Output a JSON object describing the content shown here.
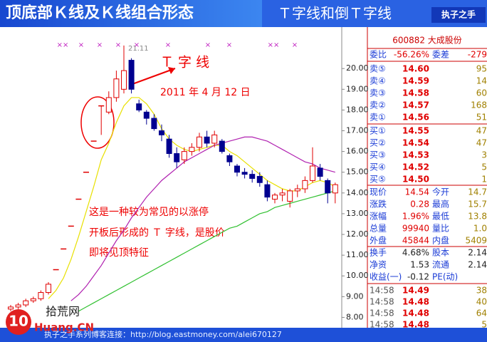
{
  "chart_data": {
    "type": "candlestick",
    "banner_title": "顶底部Ｋ线及Ｋ线组合形态",
    "title": "Ｔ字线和倒Ｔ字线",
    "banner_tag": "执子之手",
    "categories": [
      null,
      null,
      null,
      null,
      null,
      null,
      null,
      null,
      null,
      null,
      null,
      null,
      null,
      null,
      null,
      null,
      null,
      null,
      null,
      null,
      null,
      null,
      null,
      null,
      null,
      null,
      null,
      null,
      null,
      null,
      null,
      null,
      null,
      null,
      null,
      null,
      null,
      null,
      null,
      null,
      null,
      null,
      null,
      null
    ],
    "open": [
      8.4,
      8.5,
      8.6,
      8.8,
      8.9,
      9.2,
      10.3,
      11.3,
      12.4,
      13.7,
      15.0,
      16.5,
      18.2,
      17.9,
      18.6,
      19.0,
      20.4,
      18.3,
      17.9,
      17.6,
      17.0,
      16.6,
      15.9,
      15.6,
      16.0,
      16.2,
      16.7,
      16.4,
      16.5,
      15.8,
      15.3,
      15.0,
      14.9,
      14.8,
      14.4,
      13.7,
      13.9,
      13.6,
      14.1,
      14.2,
      14.6,
      15.2,
      14.6,
      14.0
    ],
    "high": [
      8.6,
      8.7,
      8.9,
      9.0,
      9.3,
      9.7,
      10.3,
      11.3,
      12.4,
      13.7,
      15.0,
      16.5,
      18.2,
      18.9,
      19.9,
      21.11,
      20.5,
      18.5,
      18.0,
      17.8,
      17.3,
      16.8,
      16.2,
      16.2,
      16.4,
      16.9,
      17.0,
      17.0,
      16.6,
      15.9,
      15.4,
      15.2,
      15.1,
      15.0,
      14.6,
      14.0,
      14.2,
      14.2,
      14.4,
      14.8,
      16.2,
      15.4,
      14.7,
      14.5
    ],
    "low": [
      8.3,
      8.4,
      8.5,
      8.7,
      8.8,
      9.1,
      10.3,
      11.3,
      12.4,
      13.7,
      15.0,
      16.5,
      16.8,
      17.8,
      18.4,
      18.8,
      18.8,
      17.9,
      17.3,
      17.0,
      16.5,
      15.7,
      15.2,
      15.4,
      15.8,
      16.0,
      16.2,
      16.2,
      15.9,
      15.3,
      14.8,
      14.7,
      14.5,
      14.3,
      13.6,
      13.5,
      13.6,
      13.3,
      13.8,
      14.0,
      14.5,
      14.6,
      13.5,
      13.5
    ],
    "close": [
      8.5,
      8.6,
      8.8,
      8.9,
      9.2,
      9.6,
      10.3,
      11.3,
      12.4,
      13.7,
      15.0,
      16.5,
      18.2,
      18.6,
      19.5,
      19.9,
      19.0,
      18.0,
      17.6,
      17.1,
      16.8,
      15.9,
      15.5,
      16.0,
      16.2,
      16.7,
      16.4,
      16.8,
      16.0,
      15.5,
      15.0,
      14.9,
      14.7,
      14.5,
      13.8,
      13.9,
      14.0,
      14.1,
      14.2,
      14.6,
      15.3,
      14.8,
      14.0,
      14.4
    ],
    "series": [
      {
        "color": "#e8e000",
        "values": [
          null,
          null,
          null,
          null,
          null,
          8.9,
          9.3,
          9.9,
          10.8,
          11.9,
          13.1,
          14.3,
          15.6,
          16.4,
          17.4,
          18.2,
          18.6,
          18.6,
          18.3,
          17.8,
          17.1,
          16.6,
          16.3,
          16.1,
          16.0,
          16.1,
          16.2,
          16.3,
          16.3,
          16.0,
          15.8,
          15.5,
          15.2,
          14.9,
          14.6,
          14.4,
          14.2,
          14.1,
          14.1,
          14.3,
          14.5,
          14.6,
          14.5,
          14.3
        ]
      },
      {
        "color": "#b020b0",
        "values": [
          null,
          null,
          null,
          null,
          null,
          null,
          null,
          null,
          8.8,
          9.1,
          9.5,
          10.0,
          10.5,
          11.1,
          11.7,
          12.2,
          12.8,
          13.3,
          13.8,
          14.2,
          14.6,
          14.9,
          15.2,
          15.5,
          15.7,
          15.9,
          16.1,
          16.3,
          16.4,
          16.5,
          16.6,
          16.7,
          16.7,
          16.6,
          16.5,
          16.3,
          16.1,
          15.9,
          15.7,
          15.5,
          15.4,
          15.2,
          15.1,
          15.0
        ]
      },
      {
        "color": "#30c030",
        "values": [
          null,
          null,
          null,
          null,
          null,
          null,
          null,
          null,
          null,
          8.3,
          8.5,
          8.7,
          8.9,
          9.1,
          9.3,
          9.5,
          9.7,
          9.9,
          10.1,
          10.3,
          10.5,
          10.7,
          10.9,
          11.1,
          11.3,
          11.5,
          11.7,
          11.9,
          12.1,
          12.3,
          12.4,
          12.6,
          12.8,
          13.0,
          13.1,
          13.3,
          13.4,
          13.5,
          13.6,
          13.7,
          13.8,
          13.9,
          14.0,
          14.1
        ]
      }
    ],
    "ylim": [
      7.5,
      22.0
    ],
    "yticks": [
      {
        "value": 20,
        "label": "20.00"
      },
      {
        "value": 19,
        "label": "19.00"
      },
      {
        "value": 18,
        "label": "18.00"
      },
      {
        "value": 17,
        "label": "17.00"
      },
      {
        "value": 16,
        "label": "16.00"
      },
      {
        "value": 15,
        "label": "15.00"
      },
      {
        "value": 14,
        "label": "14.00"
      },
      {
        "value": 13,
        "label": "13.00"
      },
      {
        "value": 12,
        "label": "12.00"
      },
      {
        "value": 11,
        "label": "11.00"
      },
      {
        "value": 10,
        "label": "10.00"
      },
      {
        "value": 9,
        "label": "9.00"
      },
      {
        "value": 8,
        "label": "8.00"
      }
    ],
    "peak_label": "21.11",
    "signal_marks": [
      "××",
      "×",
      "×",
      "×",
      "×",
      "×",
      "×",
      "×",
      "××",
      "×"
    ],
    "annotations": [
      "Ｔ 字 线",
      "2011 年 4 月 12 日",
      "这是一种较为常见的以涨停",
      "开板后形成的 Ｔ 字线，是股价",
      "即将见顶特征"
    ]
  },
  "quote_panel": {
    "header": "600882 大成股份",
    "order_ratio": [
      "委比",
      "-56.26%",
      "委差",
      "-279"
    ],
    "asks": [
      [
        "卖⑤",
        "14.60",
        "95"
      ],
      [
        "卖④",
        "14.59",
        "14"
      ],
      [
        "卖③",
        "14.58",
        "60"
      ],
      [
        "卖②",
        "14.57",
        "168"
      ],
      [
        "卖①",
        "14.56",
        "51"
      ]
    ],
    "bids": [
      [
        "买①",
        "14.55",
        "47"
      ],
      [
        "买②",
        "14.54",
        "47"
      ],
      [
        "买③",
        "14.53",
        "3"
      ],
      [
        "买④",
        "14.52",
        "5"
      ],
      [
        "买⑤",
        "14.50",
        "1"
      ]
    ],
    "stats": [
      [
        "现价",
        "14.54",
        "今开",
        "14.7"
      ],
      [
        "涨跌",
        "0.28",
        "最高",
        "15.7"
      ],
      [
        "涨幅",
        "1.96%",
        "最低",
        "13.8"
      ],
      [
        "总量",
        "99940",
        "量比",
        "1.0"
      ],
      [
        "外盘",
        "45844",
        "内盘",
        "5409"
      ]
    ],
    "finance": [
      [
        "换手",
        "4.68%",
        "股本",
        "2.14"
      ],
      [
        "净资",
        "1.53",
        "流通",
        "2.14"
      ],
      [
        "收益(一)",
        "-0.12",
        "PE(动)",
        ""
      ]
    ],
    "ticks": [
      [
        "14:58",
        "14.49",
        "38"
      ],
      [
        "14:58",
        "14.48",
        "40"
      ],
      [
        "14:58",
        "14.48",
        "64"
      ],
      [
        "14:58",
        "14.48",
        "5"
      ]
    ]
  },
  "footer": "执子之手系列博客连接：http://blog.eastmoney.com/alei670127",
  "logo": {
    "mark": "10",
    "name": "拾荒网",
    "domain": "Huang.CN"
  }
}
